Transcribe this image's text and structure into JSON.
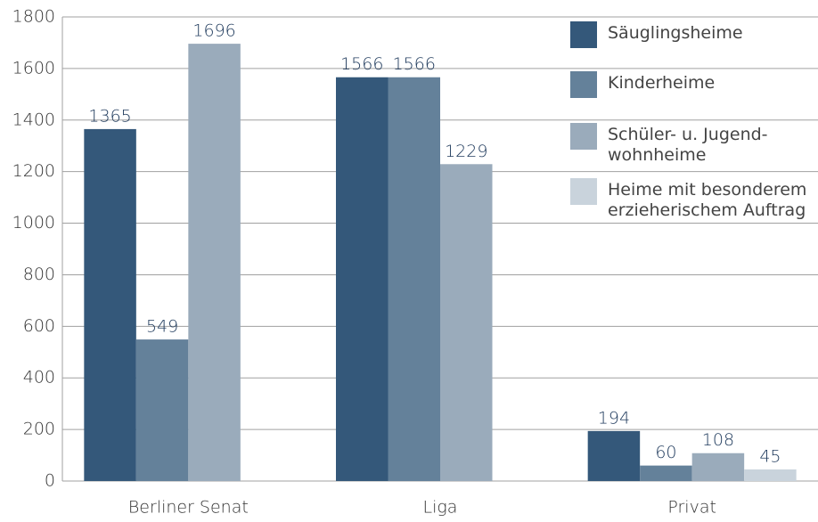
{
  "chart_data": {
    "type": "bar",
    "categories": [
      "Berliner Senat",
      "Liga",
      "Privat"
    ],
    "series": [
      {
        "name": "Säuglingsheime",
        "color": "#34587a",
        "values": [
          1365,
          1566,
          194
        ]
      },
      {
        "name": "Kinderheime",
        "color": "#64819a",
        "values": [
          549,
          1566,
          60
        ]
      },
      {
        "name": "Schüler- u. Jugend-\nwohnheime",
        "color": "#9aabbb",
        "values": [
          1696,
          1229,
          108
        ]
      },
      {
        "name": "Heime mit besonderem\nerzieherischem Auftrag",
        "color": "#c9d3dc",
        "values": [
          null,
          null,
          45
        ]
      }
    ],
    "ylim": [
      0,
      1800
    ],
    "yticks": [
      0,
      200,
      400,
      600,
      800,
      1000,
      1200,
      1400,
      1600,
      1800
    ],
    "grid": true
  }
}
